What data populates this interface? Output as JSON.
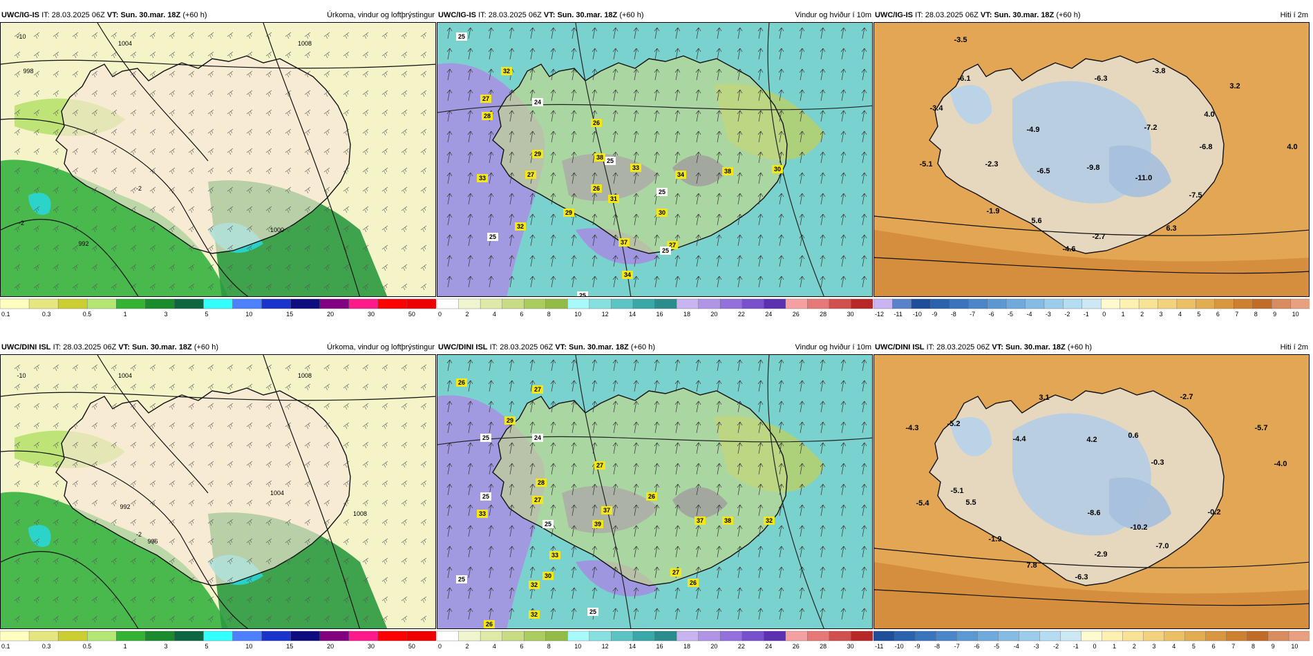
{
  "panels": [
    {
      "model": "UWC/IG-IS",
      "it_label": "IT:",
      "it_value": "28.03.2025 06Z",
      "vt_label": "VT:",
      "vt_value": "Sun. 30.mar. 18Z",
      "lead": "(+60 h)",
      "product": "Úrkoma, vindur og loftþrýstingur",
      "type": "precip",
      "labels": [
        {
          "t": "1004"
        },
        {
          "t": "1008"
        },
        {
          "t": "998"
        },
        {
          "t": "992"
        },
        {
          "t": "1000"
        },
        {
          "t": "-10"
        },
        {
          "t": "-2"
        },
        {
          "t": "-2"
        }
      ]
    },
    {
      "model": "UWC/IG-IS",
      "it_label": "IT:",
      "it_value": "28.03.2025 06Z",
      "vt_label": "VT:",
      "vt_value": "Sun. 30.mar. 18Z",
      "lead": "(+60 h)",
      "product": "Vindur og hviður í 10m",
      "type": "wind",
      "labels": [
        {
          "t": "25"
        },
        {
          "t": "32"
        },
        {
          "t": "27"
        },
        {
          "t": "28"
        },
        {
          "t": "24"
        },
        {
          "t": "26"
        },
        {
          "t": "29"
        },
        {
          "t": "33"
        },
        {
          "t": "27"
        },
        {
          "t": "25"
        },
        {
          "t": "26"
        },
        {
          "t": "38"
        },
        {
          "t": "33"
        },
        {
          "t": "34"
        },
        {
          "t": "25"
        },
        {
          "t": "38"
        },
        {
          "t": "30"
        },
        {
          "t": "29"
        },
        {
          "t": "31"
        },
        {
          "t": "30"
        },
        {
          "t": "32"
        },
        {
          "t": "25"
        },
        {
          "t": "37"
        },
        {
          "t": "27"
        },
        {
          "t": "25"
        },
        {
          "t": "34"
        },
        {
          "t": "25"
        }
      ]
    },
    {
      "model": "UWC/IG-IS",
      "it_label": "IT:",
      "it_value": "28.03.2025 06Z",
      "vt_label": "VT:",
      "vt_value": "Sun. 30.mar. 18Z",
      "lead": "(+60 h)",
      "product": "Hiti í 2m",
      "type": "temp",
      "labels": [
        {
          "t": "-3.5"
        },
        {
          "t": "-6.1"
        },
        {
          "t": "-3.4"
        },
        {
          "t": "-6.3"
        },
        {
          "t": "-3.8"
        },
        {
          "t": "3.2"
        },
        {
          "t": "4.0"
        },
        {
          "t": "-4.9"
        },
        {
          "t": "-7.2"
        },
        {
          "t": "-6.8"
        },
        {
          "t": "4.0"
        },
        {
          "t": "-5.1"
        },
        {
          "t": "-2.3"
        },
        {
          "t": "-6.5"
        },
        {
          "t": "-9.8"
        },
        {
          "t": "-11.0"
        },
        {
          "t": "-7.5"
        },
        {
          "t": "-1.9"
        },
        {
          "t": "5.6"
        },
        {
          "t": "6.3"
        },
        {
          "t": "-2.7"
        },
        {
          "t": "-4.6"
        }
      ]
    },
    {
      "model": "UWC/DINI ISL",
      "it_label": "IT:",
      "it_value": "28.03.2025 06Z",
      "vt_label": "VT:",
      "vt_value": "Sun. 30.mar. 18Z",
      "lead": "(+60 h)",
      "product": "Úrkoma, vindur og loftþrýstingur",
      "type": "precip",
      "labels": [
        {
          "t": "1004"
        },
        {
          "t": "1008"
        },
        {
          "t": "992"
        },
        {
          "t": "996"
        },
        {
          "t": "1004"
        },
        {
          "t": "1008"
        },
        {
          "t": "-10"
        },
        {
          "t": "-2"
        }
      ]
    },
    {
      "model": "UWC/DINI ISL",
      "it_label": "IT:",
      "it_value": "28.03.2025 06Z",
      "vt_label": "VT:",
      "vt_value": "Sun. 30.mar. 18Z",
      "lead": "(+60 h)",
      "product": "Vindur og hviður í 10m",
      "type": "wind",
      "labels": [
        {
          "t": "26"
        },
        {
          "t": "27"
        },
        {
          "t": "29"
        },
        {
          "t": "25"
        },
        {
          "t": "24"
        },
        {
          "t": "27"
        },
        {
          "t": "28"
        },
        {
          "t": "25"
        },
        {
          "t": "33"
        },
        {
          "t": "27"
        },
        {
          "t": "26"
        },
        {
          "t": "37"
        },
        {
          "t": "39"
        },
        {
          "t": "25"
        },
        {
          "t": "37"
        },
        {
          "t": "38"
        },
        {
          "t": "32"
        },
        {
          "t": "33"
        },
        {
          "t": "30"
        },
        {
          "t": "25"
        },
        {
          "t": "32"
        },
        {
          "t": "27"
        },
        {
          "t": "26"
        },
        {
          "t": "32"
        },
        {
          "t": "25"
        },
        {
          "t": "26"
        }
      ]
    },
    {
      "model": "UWC/DINI ISL",
      "it_label": "IT:",
      "it_value": "28.03.2025 06Z",
      "vt_label": "VT:",
      "vt_value": "Sun. 30.mar. 18Z",
      "lead": "(+60 h)",
      "product": "Hiti í 2m",
      "type": "temp",
      "labels": [
        {
          "t": "3.1"
        },
        {
          "t": "-2.7"
        },
        {
          "t": "-4.3"
        },
        {
          "t": "-5.2"
        },
        {
          "t": "0.6"
        },
        {
          "t": "-5.7"
        },
        {
          "t": "-4.4"
        },
        {
          "t": "4.2"
        },
        {
          "t": "-0.3"
        },
        {
          "t": "-4.0"
        },
        {
          "t": "-5.1"
        },
        {
          "t": "-5.4"
        },
        {
          "t": "5.5"
        },
        {
          "t": "-8.6"
        },
        {
          "t": "-10.2"
        },
        {
          "t": "-0.2"
        },
        {
          "t": "-1.9"
        },
        {
          "t": "-7.0"
        },
        {
          "t": "-2.9"
        },
        {
          "t": "7.8"
        },
        {
          "t": "-6.3"
        }
      ]
    }
  ],
  "colorbars": {
    "precip": {
      "ticks": [
        "0.1",
        "0.3",
        "0.5",
        "1",
        "3",
        "5",
        "10",
        "15",
        "20",
        "30",
        "50"
      ],
      "colors": [
        "#ffffc0",
        "#e6e680",
        "#cccc33",
        "#b3e673",
        "#33b233",
        "#1a8c2e",
        "#0d6640",
        "#33ffff",
        "#4d80ff",
        "#1a33cc",
        "#0d0d80",
        "#800080",
        "#ff1a8c",
        "#ff0000",
        "#ee0000"
      ]
    },
    "wind": {
      "ticks": [
        "0",
        "2",
        "4",
        "6",
        "8",
        "10",
        "12",
        "14",
        "16",
        "18",
        "20",
        "22",
        "24",
        "26",
        "28",
        "30"
      ],
      "colors": [
        "#ffffff",
        "#f0f5d0",
        "#dfeaa8",
        "#c8dc86",
        "#abcc5e",
        "#93bb47",
        "#a8fafa",
        "#86e0e0",
        "#5cc4c4",
        "#3aa8a8",
        "#2a8c8c",
        "#c8b4f0",
        "#b094e6",
        "#9470dc",
        "#7850cc",
        "#5c30b0",
        "#f5a0a0",
        "#e67878",
        "#d05050",
        "#b82828"
      ]
    },
    "temp_top": {
      "ticks": [
        "-12",
        "-11",
        "-10",
        "-9",
        "-8",
        "-7",
        "-6",
        "-5",
        "-4",
        "-3",
        "-2",
        "-1",
        "0",
        "1",
        "2",
        "3",
        "4",
        "5",
        "6",
        "7",
        "8",
        "9",
        "10"
      ],
      "colors": [
        "#c8b4f0",
        "#5a82c8",
        "#1e4e9a",
        "#2a62ae",
        "#3a74bc",
        "#4a86c8",
        "#5c98d2",
        "#70aadc",
        "#86bce4",
        "#9ccceb",
        "#b4dcf2",
        "#cce8f5",
        "#fffad0",
        "#fdf0b0",
        "#f8e296",
        "#f2d27c",
        "#ebc064",
        "#e2ac50",
        "#d8963e",
        "#cc8030",
        "#c06c28",
        "#d88c60",
        "#e8a080"
      ]
    },
    "temp_bottom": {
      "ticks": [
        "-11",
        "-10",
        "-9",
        "-8",
        "-7",
        "-6",
        "-5",
        "-4",
        "-3",
        "-2",
        "-1",
        "0",
        "1",
        "2",
        "3",
        "4",
        "5",
        "6",
        "7",
        "8",
        "9",
        "10"
      ],
      "colors": [
        "#1e4e9a",
        "#2a62ae",
        "#3a74bc",
        "#4a86c8",
        "#5c98d2",
        "#70aadc",
        "#86bce4",
        "#9ccceb",
        "#b4dcf2",
        "#cce8f5",
        "#fffad0",
        "#fdf0b0",
        "#f8e296",
        "#f2d27c",
        "#ebc064",
        "#e2ac50",
        "#d8963e",
        "#cc8030",
        "#c06c28",
        "#d88c60",
        "#e8a080"
      ]
    }
  }
}
